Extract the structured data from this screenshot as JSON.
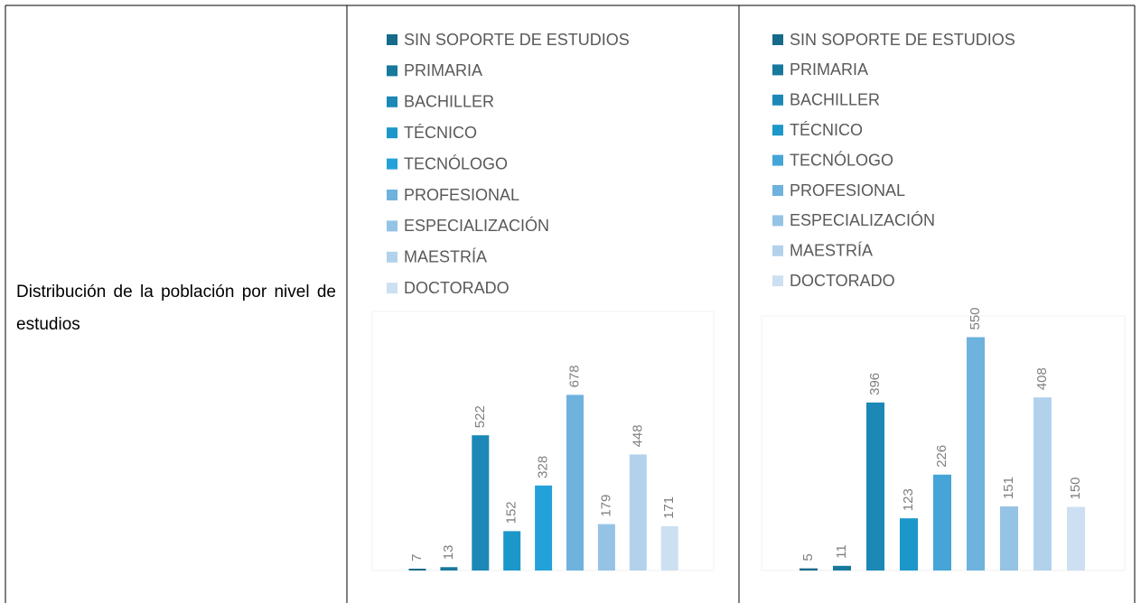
{
  "label": "Distribución de la población por nivel de estudios",
  "chart_data": [
    {
      "type": "bar",
      "categories": [
        "SIN SOPORTE DE ESTUDIOS",
        "PRIMARIA",
        "BACHILLER",
        "TÉCNICO",
        "TECNÓLOGO",
        "PROFESIONAL",
        "ESPECIALIZACIÓN",
        "MAESTRÍA",
        "DOCTORADO"
      ],
      "values": [
        7,
        13,
        522,
        152,
        328,
        678,
        179,
        448,
        171
      ],
      "colors": [
        "#166a8a",
        "#17799c",
        "#1b88b5",
        "#1c97c9",
        "#23a2d9",
        "#6eb2de",
        "#95c3e5",
        "#b2d2ec",
        "#cde0f2"
      ],
      "ylim": [
        0,
        1000
      ]
    },
    {
      "type": "bar",
      "categories": [
        "SIN SOPORTE DE ESTUDIOS",
        "PRIMARIA",
        "BACHILLER",
        "TÉCNICO",
        "TECNÓLOGO",
        "PROFESIONAL",
        "ESPECIALIZACIÓN",
        "MAESTRÍA",
        "DOCTORADO"
      ],
      "values": [
        5,
        11,
        396,
        123,
        226,
        550,
        151,
        408,
        150
      ],
      "colors": [
        "#166a8a",
        "#17799c",
        "#1b88b5",
        "#1c97c9",
        "#45a5d8",
        "#6eb2de",
        "#95c3e5",
        "#b2d2ec",
        "#cde0f2"
      ],
      "ylim": [
        0,
        600
      ]
    }
  ]
}
